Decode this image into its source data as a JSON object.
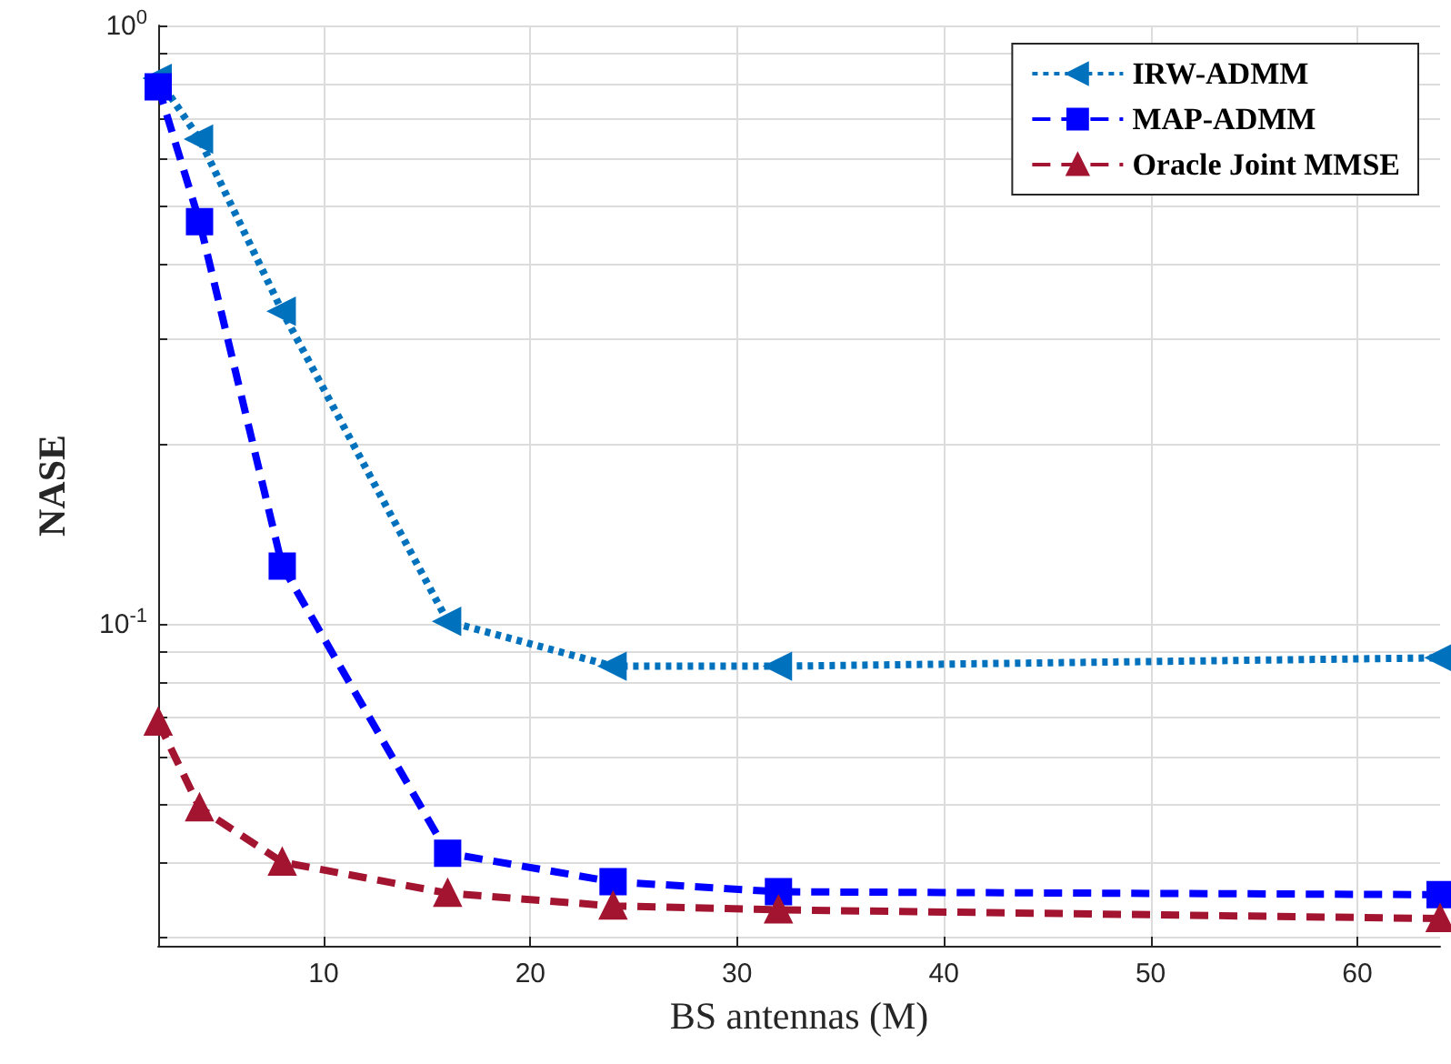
{
  "chart_data": {
    "type": "line",
    "xlabel": "BS antennas (M)",
    "ylabel": "NASE",
    "x": [
      2,
      4,
      8,
      16,
      24,
      32,
      64
    ],
    "series": [
      {
        "name": "IRW-ADMM",
        "color": "#0072bd",
        "marker": "triangle",
        "line_style": "dotted",
        "values": [
          0.816,
          0.646,
          0.333,
          0.101,
          0.085,
          0.085,
          0.0878
        ]
      },
      {
        "name": "MAP-ADMM",
        "color": "#0000ff",
        "marker": "square",
        "line_style": "dashed",
        "values": [
          0.79,
          0.47,
          0.125,
          0.0414,
          0.0371,
          0.0357,
          0.0353
        ]
      },
      {
        "name": "Oracle Joint MMSE",
        "color": "#a2142f",
        "marker": "triangle",
        "line_style": "dashed",
        "values": [
          0.0686,
          0.0493,
          0.04,
          0.0355,
          0.0338,
          0.0333,
          0.0322
        ]
      }
    ],
    "xlim": [
      2,
      64
    ],
    "xticks": [
      10,
      20,
      30,
      40,
      50,
      60
    ],
    "ylim": [
      0.029,
      1
    ],
    "yticks": [
      {
        "value": 0.03,
        "label": null
      },
      {
        "value": 0.04,
        "label": null
      },
      {
        "value": 0.05,
        "label": null
      },
      {
        "value": 0.06,
        "label": null
      },
      {
        "value": 0.07,
        "label": null
      },
      {
        "value": 0.08,
        "label": null
      },
      {
        "value": 0.09,
        "label": null
      },
      {
        "value": 0.1,
        "label": "10$^{-1}$"
      },
      {
        "value": 0.2,
        "label": null
      },
      {
        "value": 0.3,
        "label": null
      },
      {
        "value": 0.4,
        "label": null
      },
      {
        "value": 0.5,
        "label": null
      },
      {
        "value": 0.6,
        "label": null
      },
      {
        "value": 0.7,
        "label": null
      },
      {
        "value": 0.8,
        "label": null
      },
      {
        "value": 0.9,
        "label": null
      },
      {
        "value": 1,
        "label": "10$^{0}$"
      }
    ],
    "log": "y",
    "grid": true,
    "legend": "top right"
  }
}
